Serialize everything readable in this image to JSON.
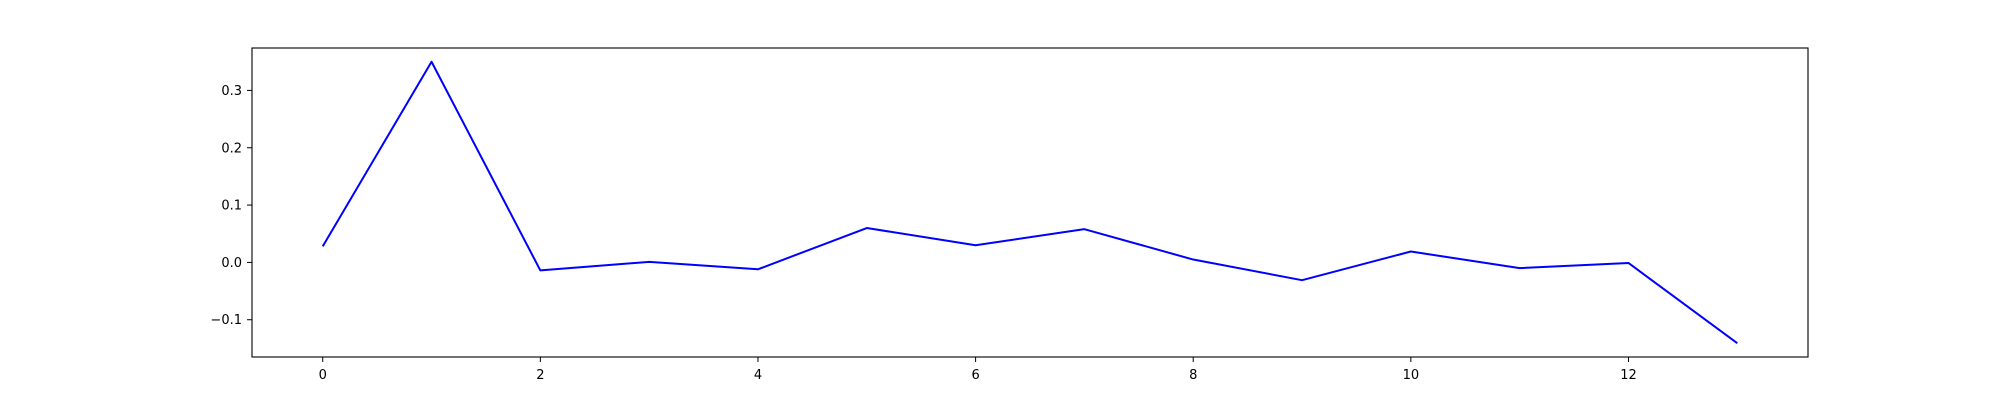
{
  "chart_data": {
    "type": "line",
    "x": [
      0,
      1,
      2,
      3,
      4,
      5,
      6,
      7,
      8,
      9,
      10,
      11,
      12,
      13
    ],
    "series": [
      {
        "values": [
          0.028,
          0.35,
          -0.014,
          0.001,
          -0.012,
          0.06,
          0.03,
          0.058,
          0.005,
          -0.031,
          0.019,
          -0.01,
          -0.001,
          -0.141
        ],
        "color": "#0000ff"
      }
    ],
    "xlim": [
      -0.65,
      13.65
    ],
    "ylim": [
      -0.165,
      0.374
    ],
    "xticks": [
      0,
      2,
      4,
      6,
      8,
      10,
      12
    ],
    "yticks": [
      -0.1,
      0.0,
      0.1,
      0.2,
      0.3
    ],
    "xtick_labels": [
      "0",
      "2",
      "4",
      "6",
      "8",
      "10",
      "12"
    ],
    "ytick_labels": [
      "−0.1",
      "0.0",
      "0.1",
      "0.2",
      "0.3"
    ],
    "grid": false,
    "legend": false
  }
}
